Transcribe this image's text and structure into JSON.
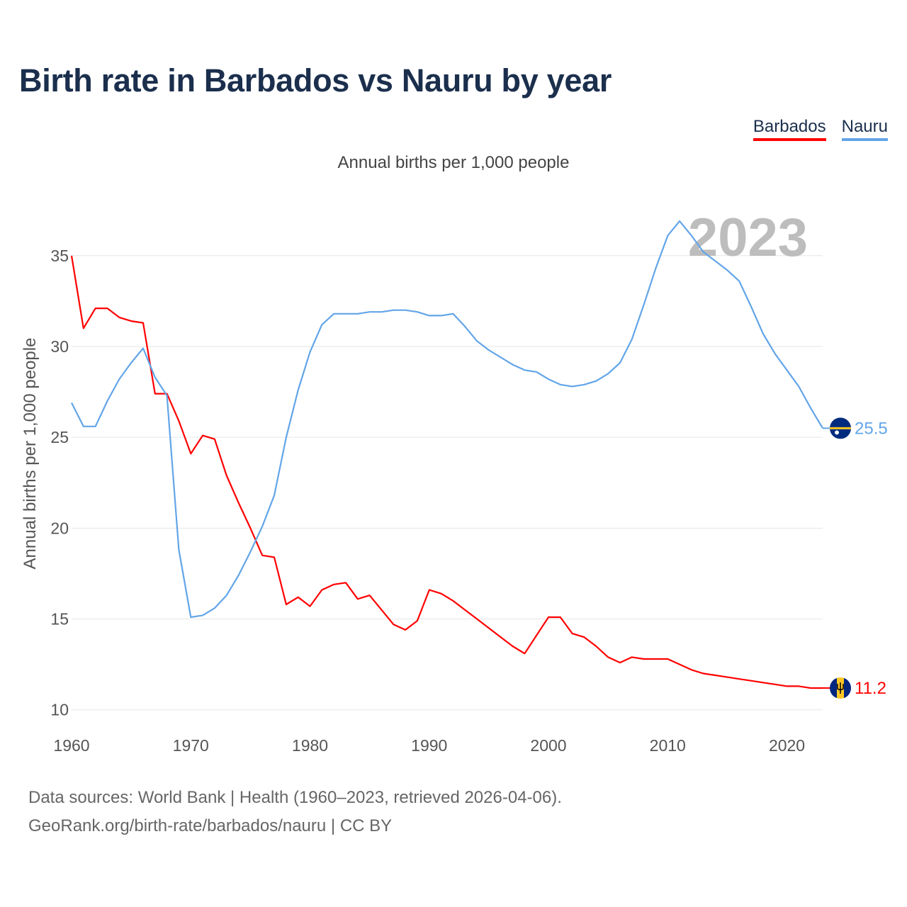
{
  "header": {
    "title": "Birth rate in Barbados vs Nauru by year"
  },
  "legend": {
    "items": [
      {
        "label": "Barbados",
        "color": "#ff0000"
      },
      {
        "label": "Nauru",
        "color": "#62a5e8"
      }
    ]
  },
  "footer": {
    "source": "Data sources: World Bank | Health (1960–2023, retrieved 2026-04-06).",
    "credit": "GeoRank.org/birth-rate/barbados/nauru | CC BY"
  },
  "chart_data": {
    "type": "line",
    "title": "Birth rate in Barbados vs Nauru by year",
    "subtitle": "Annual births per 1,000 people",
    "xlabel": "",
    "ylabel": "Annual births per 1,000 people",
    "year_label": "2023",
    "xlim": [
      1960,
      2023
    ],
    "ylim": [
      9.6,
      36.2
    ],
    "xticks": [
      1960,
      1970,
      1980,
      1990,
      2000,
      2010,
      2020
    ],
    "yticks": [
      10,
      15,
      20,
      25,
      30,
      35
    ],
    "grid": true,
    "legend_position": "top-right",
    "series": [
      {
        "name": "Barbados",
        "color": "#ff0000",
        "end_value": "11.2",
        "flag_icon": "barbados-flag-icon",
        "x": [
          1960,
          1961,
          1962,
          1963,
          1964,
          1965,
          1966,
          1967,
          1968,
          1969,
          1970,
          1971,
          1972,
          1973,
          1974,
          1975,
          1976,
          1977,
          1978,
          1979,
          1980,
          1981,
          1982,
          1983,
          1984,
          1985,
          1986,
          1987,
          1988,
          1989,
          1990,
          1991,
          1992,
          1993,
          1994,
          1995,
          1996,
          1997,
          1998,
          1999,
          2000,
          2001,
          2002,
          2003,
          2004,
          2005,
          2006,
          2007,
          2008,
          2009,
          2010,
          2011,
          2012,
          2013,
          2014,
          2015,
          2016,
          2017,
          2018,
          2019,
          2020,
          2021,
          2022,
          2023
        ],
        "values": [
          35.0,
          31.0,
          32.1,
          32.1,
          31.6,
          31.4,
          31.3,
          27.4,
          27.4,
          25.9,
          24.1,
          25.1,
          24.9,
          22.9,
          21.4,
          20.0,
          18.5,
          18.4,
          15.8,
          16.2,
          15.7,
          16.6,
          16.9,
          17.0,
          16.1,
          16.3,
          15.5,
          14.7,
          14.4,
          14.9,
          16.6,
          16.4,
          16.0,
          15.5,
          15.0,
          14.5,
          14.0,
          13.5,
          13.1,
          14.1,
          15.1,
          15.1,
          14.2,
          14.0,
          13.5,
          12.9,
          12.6,
          12.9,
          12.8,
          12.8,
          12.8,
          12.5,
          12.2,
          12.0,
          11.9,
          11.8,
          11.7,
          11.6,
          11.5,
          11.4,
          11.3,
          11.3,
          11.2,
          11.2
        ]
      },
      {
        "name": "Nauru",
        "color": "#62a5e8",
        "end_value": "25.5",
        "flag_icon": "nauru-flag-icon",
        "x": [
          1960,
          1961,
          1962,
          1963,
          1964,
          1965,
          1966,
          1967,
          1968,
          1969,
          1970,
          1971,
          1972,
          1973,
          1974,
          1975,
          1976,
          1977,
          1978,
          1979,
          1980,
          1981,
          1982,
          1983,
          1984,
          1985,
          1986,
          1987,
          1988,
          1989,
          1990,
          1991,
          1992,
          1993,
          1994,
          1995,
          1996,
          1997,
          1998,
          1999,
          2000,
          2001,
          2002,
          2003,
          2004,
          2005,
          2006,
          2007,
          2008,
          2009,
          2010,
          2011,
          2012,
          2013,
          2014,
          2015,
          2016,
          2017,
          2018,
          2019,
          2020,
          2021,
          2022,
          2023
        ],
        "values": [
          26.9,
          25.6,
          25.6,
          27.0,
          28.2,
          29.1,
          29.9,
          28.3,
          27.3,
          18.8,
          15.1,
          15.2,
          15.6,
          16.3,
          17.4,
          18.7,
          20.1,
          21.8,
          25.0,
          27.6,
          29.7,
          31.2,
          31.8,
          31.8,
          31.8,
          31.9,
          31.9,
          32.0,
          32.0,
          31.9,
          31.7,
          31.7,
          31.8,
          31.1,
          30.3,
          29.8,
          29.4,
          29.0,
          28.7,
          28.6,
          28.2,
          27.9,
          27.8,
          27.9,
          28.1,
          28.5,
          29.1,
          30.4,
          32.3,
          34.3,
          36.1,
          36.9,
          36.1,
          35.2,
          34.7,
          34.2,
          33.6,
          32.2,
          30.7,
          29.6,
          28.7,
          27.8,
          26.6,
          25.5
        ]
      }
    ]
  }
}
